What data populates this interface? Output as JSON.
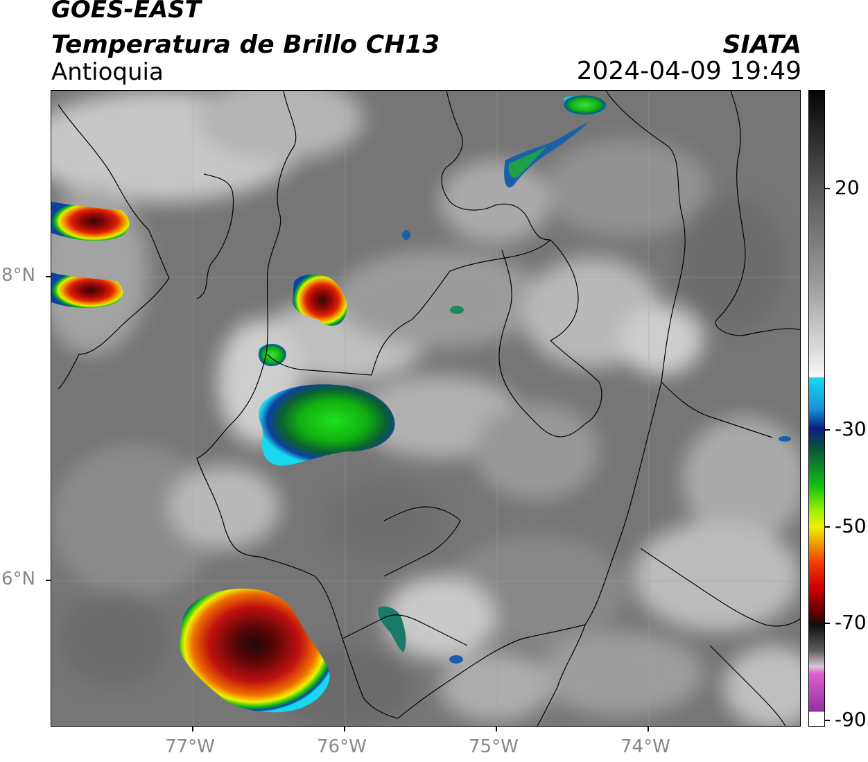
{
  "header": {
    "satellite": "GOES-EAST",
    "product": "Temperatura de Brillo CH13",
    "region": "Antioquia",
    "agency": "SIATA",
    "datetime": "2024-04-09 19:49"
  },
  "map": {
    "lat_labels": [
      "8°N",
      "6°N"
    ],
    "lon_labels": [
      "77°W",
      "76°W",
      "75°W",
      "74°W"
    ]
  },
  "colorbar": {
    "tick_labels": [
      "20",
      "-30",
      "-50",
      "-70",
      "-90"
    ],
    "palette_colors": {
      "warm_gray": "#7a7a7a",
      "white": "#f5f5f5",
      "cyan": "#18d8f0",
      "blue": "#1040a0",
      "green": "#10c010",
      "yellow": "#f0f000",
      "orange": "#f08000",
      "red": "#e00000",
      "dark_red": "#600000",
      "black": "#101010",
      "magenta": "#e060d0",
      "purple": "#9030a0"
    }
  }
}
